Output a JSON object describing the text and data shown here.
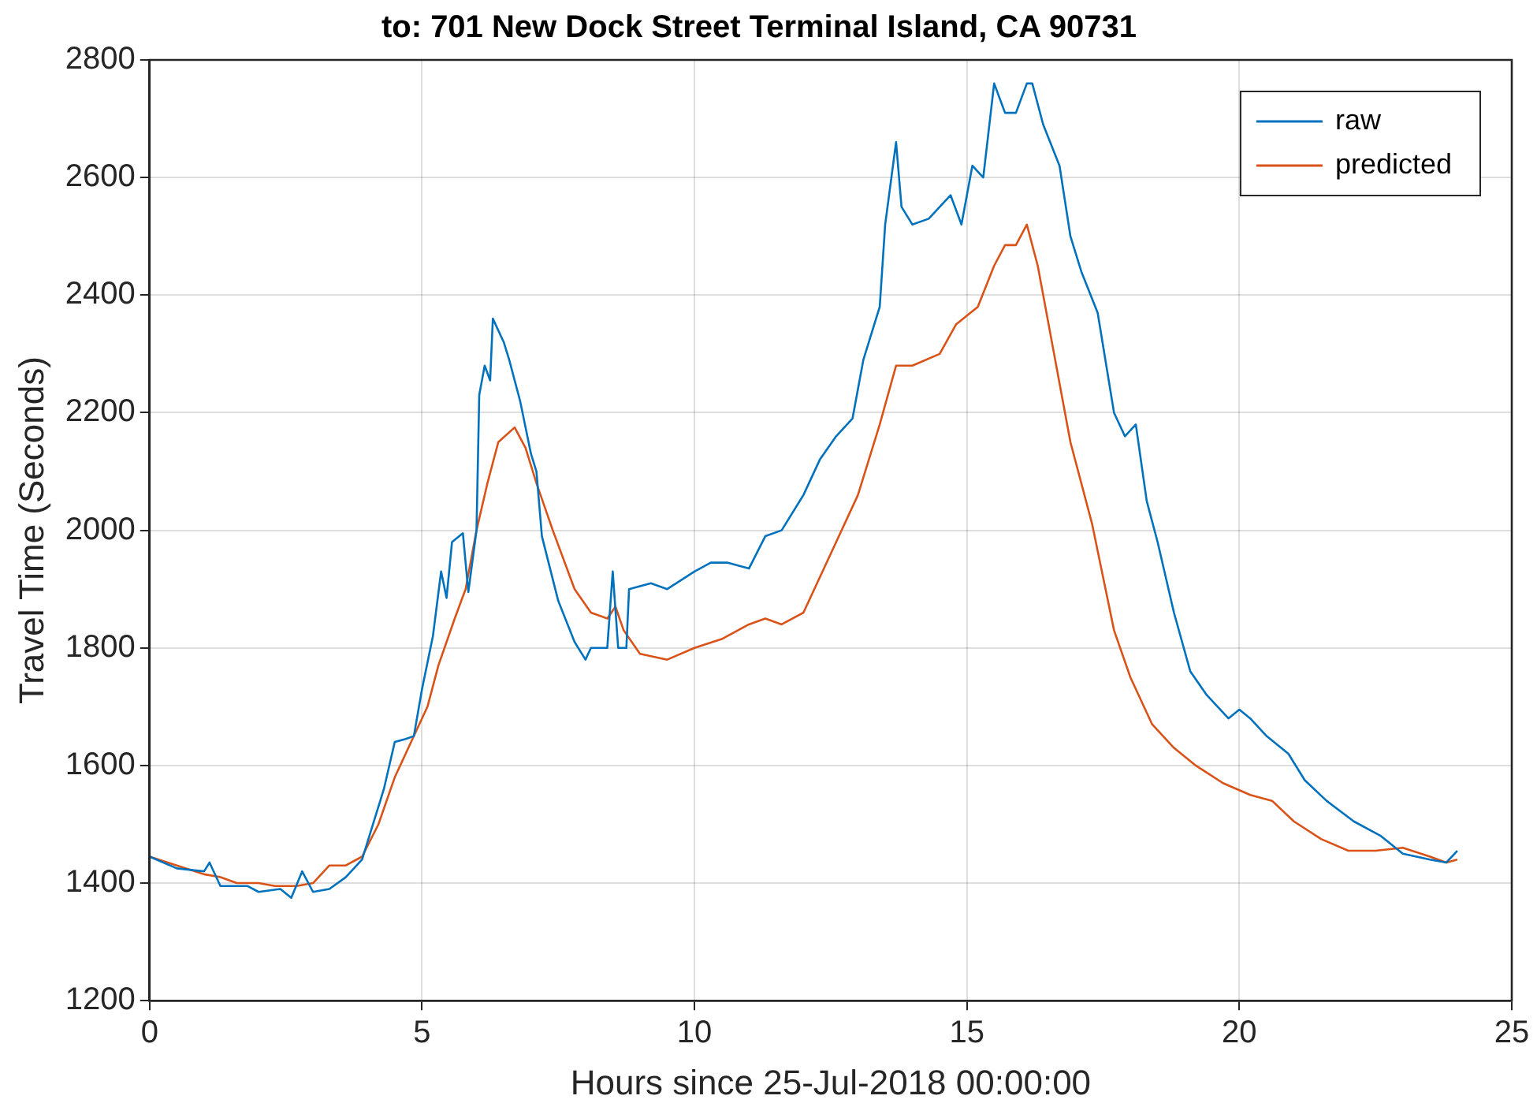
{
  "chart_data": {
    "type": "line",
    "title": "to: 701 New Dock Street Terminal Island, CA 90731",
    "xlabel": "Hours since 25-Jul-2018 00:00:00",
    "ylabel": "Travel Time (Seconds)",
    "xlim": [
      0,
      25
    ],
    "xticks": [
      0,
      5,
      10,
      15,
      20,
      25
    ],
    "ylim": [
      1200,
      2800
    ],
    "yticks": [
      1200,
      1400,
      1600,
      1800,
      2000,
      2200,
      2400,
      2600,
      2800
    ],
    "grid": true,
    "legend": "top right",
    "marker": "none",
    "line_style": "solid",
    "series": [
      {
        "name": "raw",
        "color": "#0072bd",
        "x": [
          0,
          0.5,
          1.0,
          1.1,
          1.3,
          1.8,
          2.0,
          2.4,
          2.6,
          2.8,
          3.0,
          3.3,
          3.6,
          3.9,
          4.1,
          4.3,
          4.5,
          4.7,
          4.85,
          5.0,
          5.2,
          5.35,
          5.45,
          5.55,
          5.75,
          5.85,
          6.0,
          6.05,
          6.15,
          6.25,
          6.3,
          6.5,
          6.6,
          6.8,
          7.0,
          7.1,
          7.2,
          7.5,
          7.8,
          8.0,
          8.1,
          8.4,
          8.5,
          8.6,
          8.75,
          8.8,
          9.2,
          9.5,
          10.0,
          10.3,
          10.6,
          11.0,
          11.3,
          11.6,
          12.0,
          12.3,
          12.6,
          12.9,
          13.1,
          13.4,
          13.5,
          13.7,
          13.8,
          14.0,
          14.3,
          14.7,
          14.9,
          15.1,
          15.3,
          15.5,
          15.7,
          15.9,
          16.1,
          16.2,
          16.4,
          16.7,
          16.9,
          17.1,
          17.4,
          17.7,
          17.9,
          18.1,
          18.3,
          18.5,
          18.8,
          19.1,
          19.4,
          19.8,
          20.0,
          20.2,
          20.5,
          20.9,
          21.2,
          21.6,
          22.1,
          22.6,
          23.0,
          23.5,
          23.8,
          24.0
        ],
        "values": [
          1445,
          1425,
          1420,
          1435,
          1395,
          1395,
          1385,
          1390,
          1375,
          1420,
          1385,
          1390,
          1410,
          1440,
          1500,
          1560,
          1640,
          1645,
          1650,
          1730,
          1820,
          1930,
          1885,
          1980,
          1995,
          1895,
          2000,
          2230,
          2280,
          2255,
          2360,
          2320,
          2290,
          2220,
          2130,
          2100,
          1990,
          1880,
          1810,
          1780,
          1800,
          1800,
          1930,
          1800,
          1800,
          1900,
          1910,
          1900,
          1930,
          1945,
          1945,
          1935,
          1990,
          2000,
          2060,
          2120,
          2160,
          2190,
          2290,
          2380,
          2520,
          2660,
          2550,
          2520,
          2530,
          2570,
          2520,
          2620,
          2600,
          2760,
          2710,
          2710,
          2760,
          2760,
          2690,
          2620,
          2500,
          2440,
          2370,
          2200,
          2160,
          2180,
          2050,
          1980,
          1860,
          1760,
          1720,
          1680,
          1695,
          1680,
          1650,
          1620,
          1575,
          1540,
          1505,
          1480,
          1450,
          1440,
          1435,
          1455
        ]
      },
      {
        "name": "predicted",
        "color": "#d95319",
        "x": [
          0,
          0.5,
          1.0,
          1.3,
          1.6,
          2.0,
          2.3,
          2.7,
          3.0,
          3.3,
          3.6,
          3.9,
          4.2,
          4.5,
          4.8,
          5.1,
          5.3,
          5.6,
          5.8,
          6.0,
          6.2,
          6.4,
          6.7,
          6.9,
          7.1,
          7.4,
          7.8,
          8.1,
          8.4,
          8.55,
          8.7,
          9.0,
          9.5,
          10.0,
          10.5,
          11.0,
          11.3,
          11.6,
          12.0,
          12.5,
          13.0,
          13.4,
          13.7,
          14.0,
          14.5,
          14.8,
          15.2,
          15.5,
          15.7,
          15.9,
          16.1,
          16.3,
          16.6,
          16.9,
          17.3,
          17.7,
          18.0,
          18.4,
          18.8,
          19.2,
          19.7,
          20.2,
          20.6,
          21.0,
          21.5,
          22.0,
          22.5,
          23.0,
          23.5,
          23.8,
          24.0
        ],
        "values": [
          1445,
          1430,
          1415,
          1410,
          1400,
          1400,
          1395,
          1395,
          1400,
          1430,
          1430,
          1445,
          1500,
          1580,
          1640,
          1700,
          1770,
          1850,
          1900,
          2000,
          2080,
          2150,
          2175,
          2140,
          2080,
          2000,
          1900,
          1860,
          1850,
          1870,
          1830,
          1790,
          1780,
          1800,
          1815,
          1840,
          1850,
          1840,
          1860,
          1960,
          2060,
          2180,
          2280,
          2280,
          2300,
          2350,
          2380,
          2450,
          2485,
          2485,
          2520,
          2450,
          2300,
          2150,
          2010,
          1830,
          1750,
          1670,
          1630,
          1600,
          1570,
          1550,
          1540,
          1505,
          1475,
          1455,
          1455,
          1460,
          1445,
          1435,
          1440
        ]
      }
    ]
  }
}
